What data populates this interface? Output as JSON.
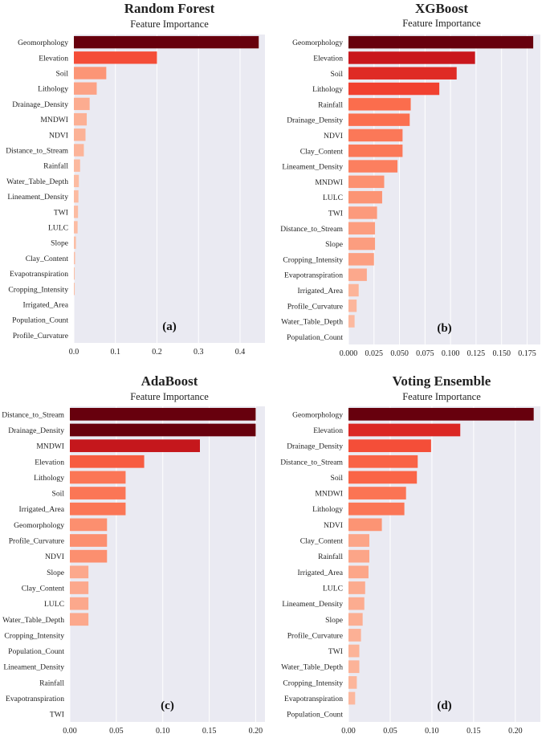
{
  "chart_data": [
    {
      "type": "bar",
      "orientation": "horizontal",
      "title": "Random Forest",
      "subtitle": "Feature Importance",
      "panel_label": "(a)",
      "xlim": [
        0,
        0.46
      ],
      "xticks": [
        0.0,
        0.1,
        0.2,
        0.3,
        0.4
      ],
      "xtick_labels": [
        "0.0",
        "0.1",
        "0.2",
        "0.3",
        "0.4"
      ],
      "categories": [
        "Geomorphology",
        "Elevation",
        "Soil",
        "Lithology",
        "Drainage_Density",
        "MNDWI",
        "NDVI",
        "Distance_to_Stream",
        "Rainfall",
        "Water_Table_Depth",
        "Lineament_Density",
        "TWI",
        "LULC",
        "Slope",
        "Clay_Content",
        "Evapotranspiration",
        "Cropping_Intensity",
        "Irrigated_Area",
        "Population_Count",
        "Profile_Curvature"
      ],
      "values": [
        0.445,
        0.2,
        0.078,
        0.055,
        0.038,
        0.031,
        0.028,
        0.024,
        0.015,
        0.012,
        0.011,
        0.01,
        0.009,
        0.005,
        0.003,
        0.002,
        0.002,
        0.0,
        0.0,
        0.0
      ]
    },
    {
      "type": "bar",
      "orientation": "horizontal",
      "title": "XGBoost",
      "subtitle": "Feature Importance",
      "panel_label": "(b)",
      "xlim": [
        0,
        0.188
      ],
      "xticks": [
        0.0,
        0.025,
        0.05,
        0.075,
        0.1,
        0.125,
        0.15,
        0.175
      ],
      "xtick_labels": [
        "0.000",
        "0.025",
        "0.050",
        "0.075",
        "0.100",
        "0.125",
        "0.150",
        "0.175"
      ],
      "categories": [
        "Geomorphology",
        "Elevation",
        "Soil",
        "Lithology",
        "Rainfall",
        "Drainage_Density",
        "NDVI",
        "Clay_Content",
        "Lineament_Density",
        "MNDWI",
        "LULC",
        "TWI",
        "Distance_to_Stream",
        "Slope",
        "Cropping_Intensity",
        "Evapotranspiration",
        "Irrigated_Area",
        "Profile_Curvature",
        "Water_Table_Depth",
        "Population_Count"
      ],
      "values": [
        0.181,
        0.124,
        0.106,
        0.089,
        0.061,
        0.06,
        0.053,
        0.053,
        0.048,
        0.035,
        0.033,
        0.028,
        0.026,
        0.026,
        0.025,
        0.018,
        0.01,
        0.008,
        0.006,
        0.0
      ]
    },
    {
      "type": "bar",
      "orientation": "horizontal",
      "title": "AdaBoost",
      "subtitle": "Feature Importance",
      "panel_label": "(c)",
      "xlim": [
        0,
        0.21
      ],
      "xticks": [
        0.0,
        0.05,
        0.1,
        0.15,
        0.2
      ],
      "xtick_labels": [
        "0.00",
        "0.05",
        "0.10",
        "0.15",
        "0.20"
      ],
      "categories": [
        "Distance_to_Stream",
        "Drainage_Density",
        "MNDWI",
        "Elevation",
        "Lithology",
        "Soil",
        "Irrigated_Area",
        "Geomorphology",
        "Profile_Curvature",
        "NDVI",
        "Slope",
        "Clay_Content",
        "LULC",
        "Water_Table_Depth",
        "Cropping_Intensity",
        "Population_Count",
        "Lineament_Density",
        "Rainfall",
        "Evapotranspiration",
        "TWI"
      ],
      "values": [
        0.2,
        0.2,
        0.14,
        0.08,
        0.06,
        0.06,
        0.06,
        0.04,
        0.04,
        0.04,
        0.02,
        0.02,
        0.02,
        0.02,
        0.0,
        0.0,
        0.0,
        0.0,
        0.0,
        0.0
      ]
    },
    {
      "type": "bar",
      "orientation": "horizontal",
      "title": "Voting Ensemble",
      "subtitle": "Feature Importance",
      "panel_label": "(d)",
      "xlim": [
        0,
        0.23
      ],
      "xticks": [
        0.0,
        0.05,
        0.1,
        0.15,
        0.2
      ],
      "xtick_labels": [
        "0.00",
        "0.05",
        "0.10",
        "0.15",
        "0.20"
      ],
      "categories": [
        "Geomorphology",
        "Elevation",
        "Drainage_Density",
        "Distance_to_Stream",
        "Soil",
        "MNDWI",
        "Lithology",
        "NDVI",
        "Clay_Content",
        "Rainfall",
        "Irrigated_Area",
        "LULC",
        "Lineament_Density",
        "Slope",
        "Profile_Curvature",
        "TWI",
        "Water_Table_Depth",
        "Cropping_Intensity",
        "Evapotranspiration",
        "Population_Count"
      ],
      "values": [
        0.222,
        0.134,
        0.099,
        0.083,
        0.082,
        0.069,
        0.067,
        0.04,
        0.025,
        0.025,
        0.024,
        0.02,
        0.019,
        0.017,
        0.015,
        0.013,
        0.013,
        0.01,
        0.008,
        0.0
      ]
    }
  ],
  "colors": {
    "background": "#eaeaf2",
    "gridline": "#ffffff",
    "text": "#222222",
    "palette": [
      "#fee0d2",
      "#fcbba1",
      "#fc9272",
      "#fb6a4a",
      "#ef3b2c",
      "#cb181d",
      "#a50f15",
      "#67000d"
    ]
  }
}
